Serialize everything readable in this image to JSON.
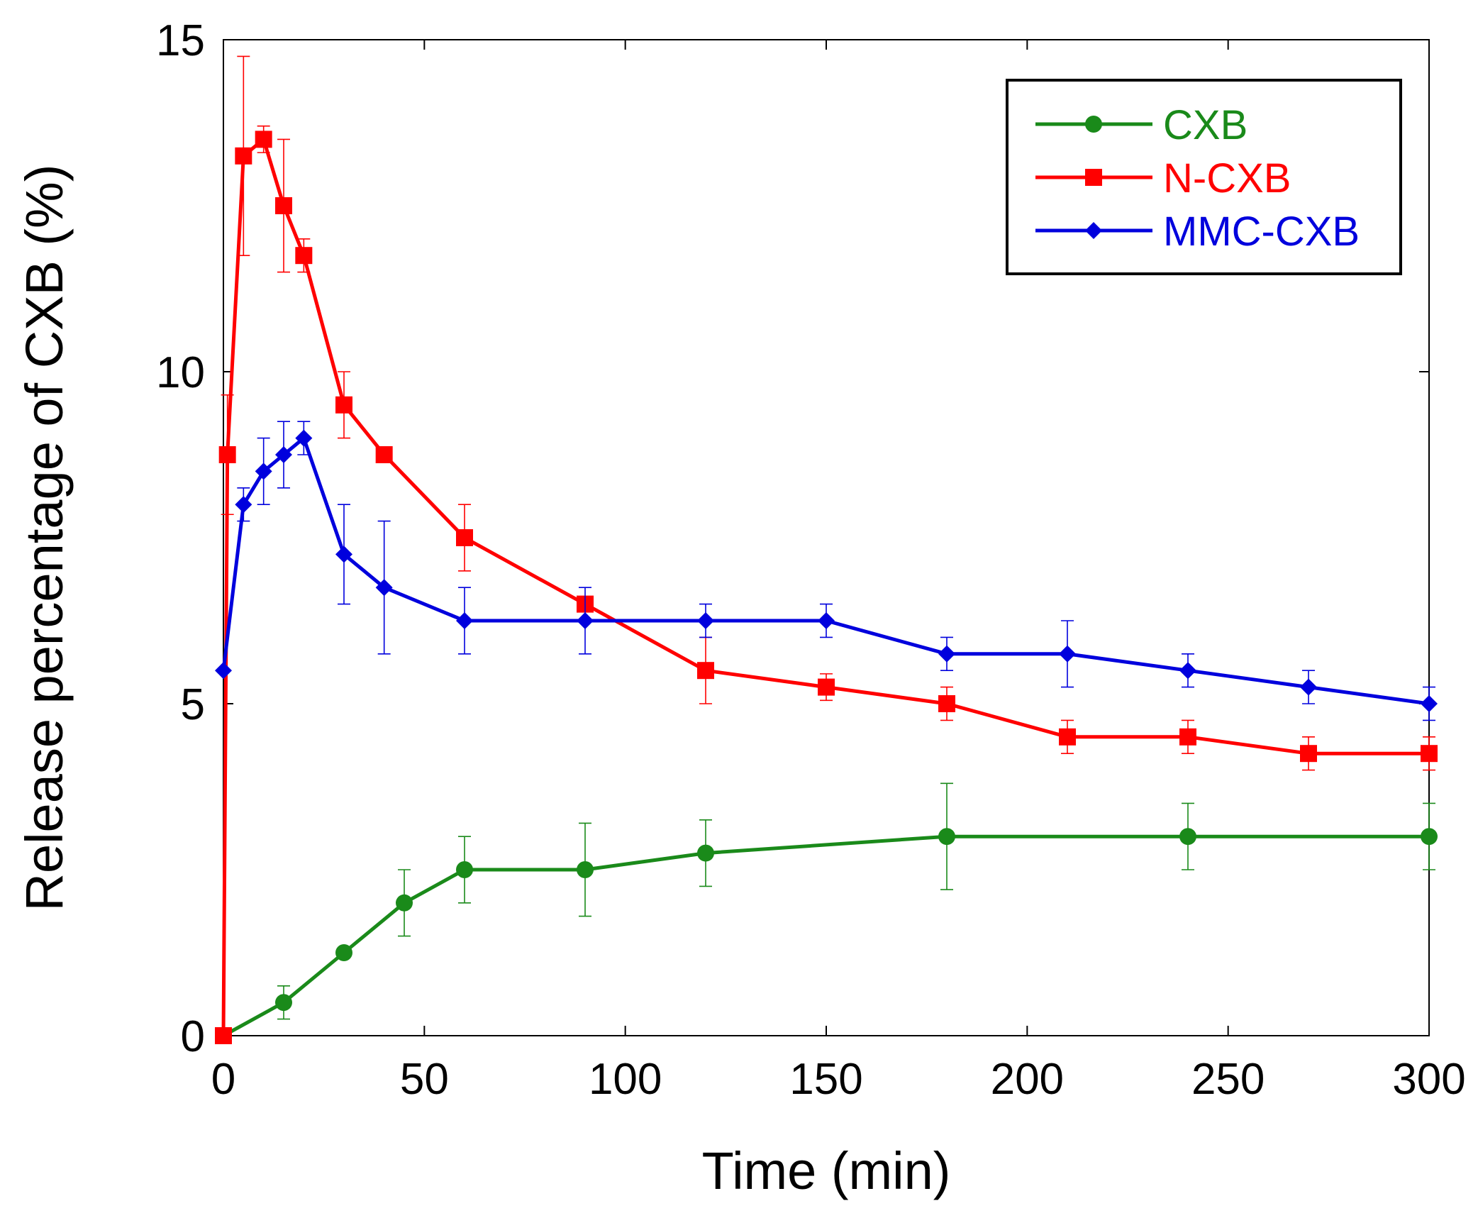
{
  "chart_data": {
    "type": "line",
    "title": "",
    "xlabel": "Time (min)",
    "ylabel": "Release percentage of CXB (%)",
    "xlim": [
      0,
      300
    ],
    "ylim": [
      0,
      15
    ],
    "xticks": [
      0,
      50,
      100,
      150,
      200,
      250,
      300
    ],
    "yticks": [
      0,
      5,
      10,
      15
    ],
    "grid": false,
    "legend_position": "top-right",
    "series": [
      {
        "name": "CXB",
        "color": "#1a8a1a",
        "marker": "circle",
        "x": [
          0,
          15,
          30,
          45,
          60,
          90,
          120,
          180,
          240,
          300
        ],
        "y": [
          0,
          0.5,
          1.25,
          2.0,
          2.5,
          2.5,
          2.75,
          3.0,
          3.0,
          3.0
        ],
        "err": [
          0,
          0.25,
          0,
          0.5,
          0.5,
          0.7,
          0.5,
          0.8,
          0.5,
          0.5
        ]
      },
      {
        "name": "N-CXB",
        "color": "#ff0000",
        "marker": "square",
        "x": [
          0,
          1,
          5,
          10,
          15,
          20,
          30,
          40,
          60,
          90,
          120,
          150,
          180,
          210,
          240,
          270,
          300
        ],
        "y": [
          0,
          8.75,
          13.25,
          13.5,
          12.5,
          11.75,
          9.5,
          8.75,
          7.5,
          6.5,
          5.5,
          5.25,
          5.0,
          4.5,
          4.5,
          4.25,
          4.25
        ],
        "err": [
          0,
          0.9,
          1.5,
          0.2,
          1.0,
          0.25,
          0.5,
          0,
          0.5,
          0,
          0.5,
          0.2,
          0.25,
          0.25,
          0.25,
          0.25,
          0.25
        ]
      },
      {
        "name": "MMC-CXB",
        "color": "#0000dd",
        "marker": "diamond",
        "x": [
          0,
          5,
          10,
          15,
          20,
          30,
          40,
          60,
          90,
          120,
          150,
          180,
          210,
          240,
          270,
          300
        ],
        "y": [
          5.5,
          8.0,
          8.5,
          8.75,
          9.0,
          7.25,
          6.75,
          6.25,
          6.25,
          6.25,
          6.25,
          5.75,
          5.75,
          5.5,
          5.25,
          5.0
        ],
        "err": [
          0,
          0.25,
          0.5,
          0.5,
          0.25,
          0.75,
          1.0,
          0.5,
          0.5,
          0.25,
          0.25,
          0.25,
          0.5,
          0.25,
          0.25,
          0.25
        ]
      }
    ]
  }
}
